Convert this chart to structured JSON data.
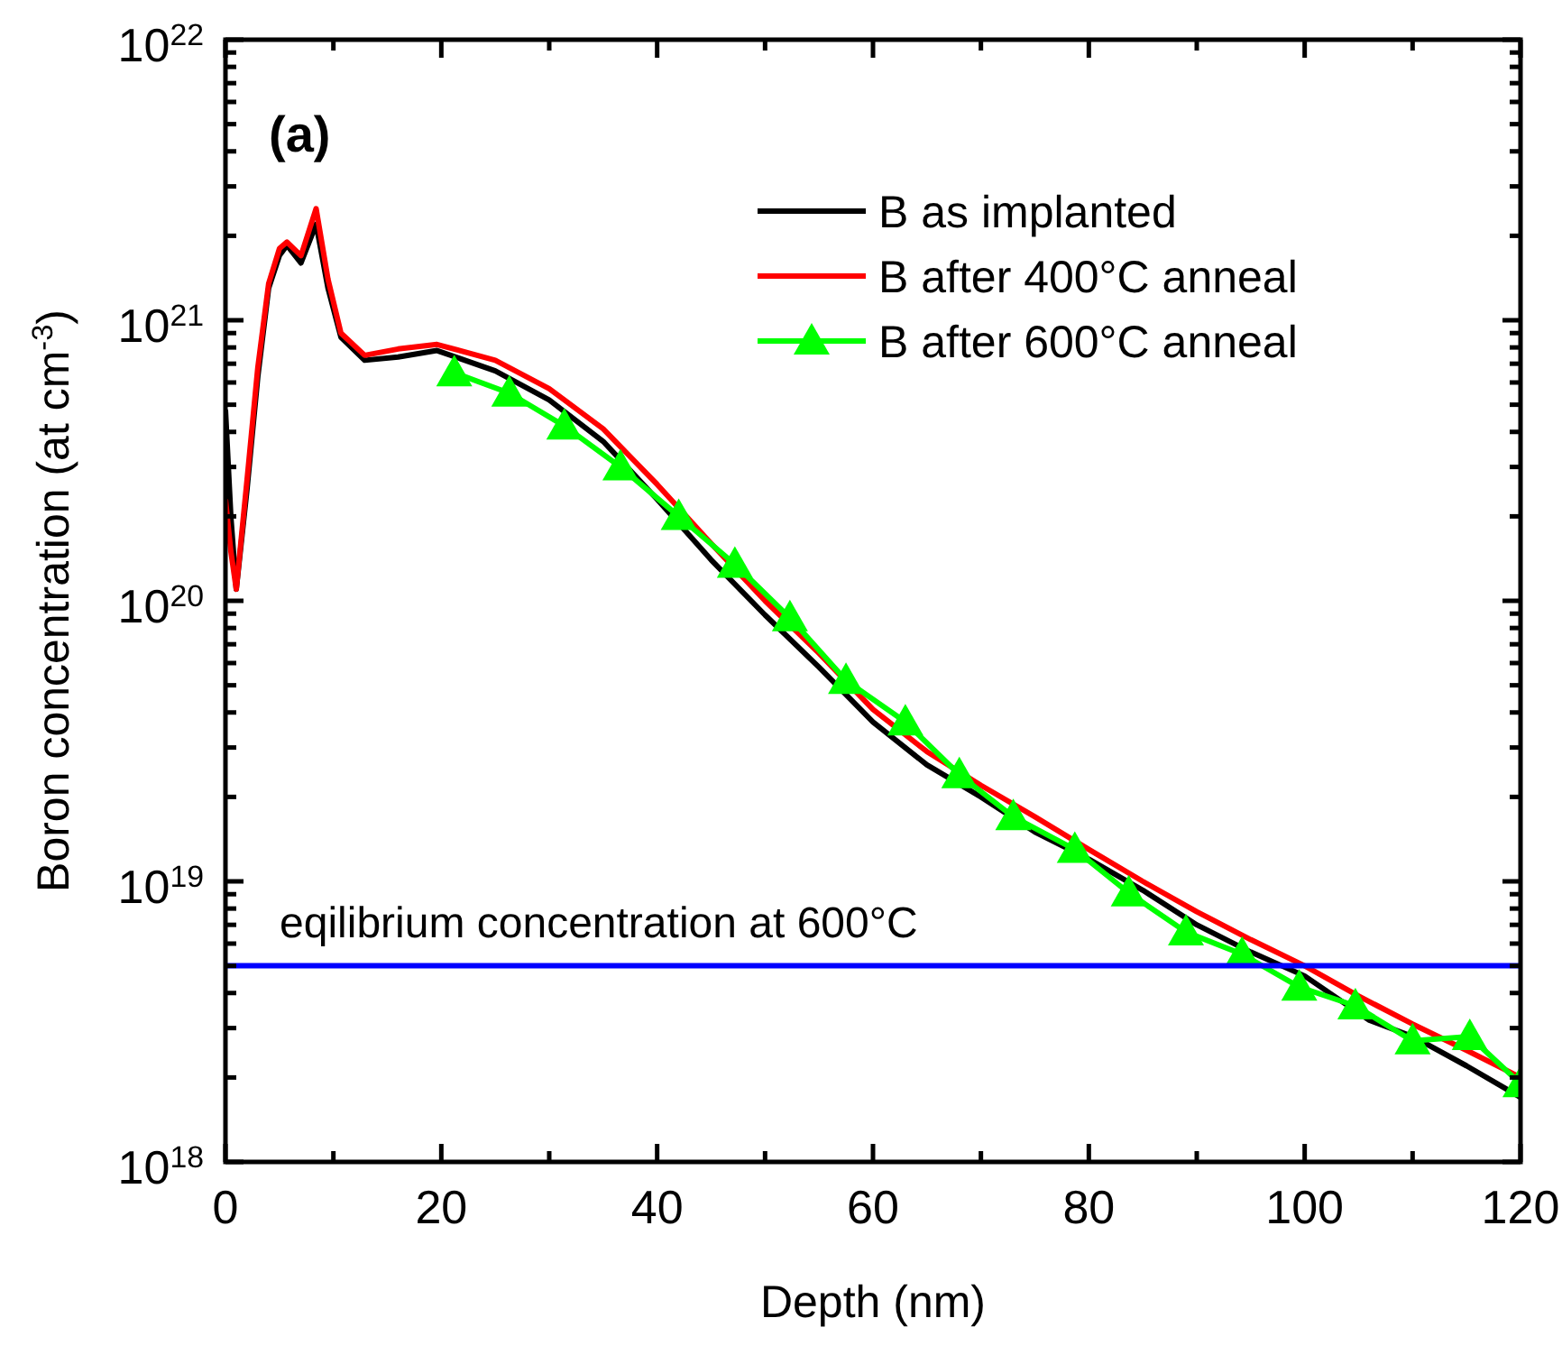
{
  "chart_data": {
    "type": "line",
    "xlabel": "Depth (nm)",
    "ylabel": "Boron concentration (at cm$^{-3}$)",
    "log": "y",
    "xlim": [
      0,
      120
    ],
    "ylim": [
      1e+18,
      1e+22
    ],
    "xticks": [
      0,
      {
        "value": 10,
        "label": null
      },
      20,
      {
        "value": 30,
        "label": null
      },
      40,
      {
        "value": 50,
        "label": null
      },
      60,
      {
        "value": 70,
        "label": null
      },
      80,
      {
        "value": 90,
        "label": null
      },
      100,
      {
        "value": 110,
        "label": null
      },
      120
    ],
    "yticks": [
      {
        "value": 1e+18,
        "label": "10$^{18}$"
      },
      {
        "value": 2e+18,
        "label": null
      },
      {
        "value": 3e+18,
        "label": null
      },
      {
        "value": 4e+18,
        "label": null
      },
      {
        "value": 5e+18,
        "label": null
      },
      {
        "value": 6e+18,
        "label": null
      },
      {
        "value": 7e+18,
        "label": null
      },
      {
        "value": 8e+18,
        "label": null
      },
      {
        "value": 9e+18,
        "label": null
      },
      {
        "value": 1e+19,
        "label": "10$^{19}$"
      },
      {
        "value": 2e+19,
        "label": null
      },
      {
        "value": 3e+19,
        "label": null
      },
      {
        "value": 4e+19,
        "label": null
      },
      {
        "value": 5e+19,
        "label": null
      },
      {
        "value": 6e+19,
        "label": null
      },
      {
        "value": 7e+19,
        "label": null
      },
      {
        "value": 8e+19,
        "label": null
      },
      {
        "value": 9e+19,
        "label": null
      },
      {
        "value": 1e+20,
        "label": "10$^{20}$"
      },
      {
        "value": 2e+20,
        "label": null
      },
      {
        "value": 3e+20,
        "label": null
      },
      {
        "value": 4e+20,
        "label": null
      },
      {
        "value": 5e+20,
        "label": null
      },
      {
        "value": 6e+20,
        "label": null
      },
      {
        "value": 7e+20,
        "label": null
      },
      {
        "value": 8e+20,
        "label": null
      },
      {
        "value": 9e+20,
        "label": null
      },
      {
        "value": 1e+21,
        "label": "10$^{21}$"
      },
      {
        "value": 2e+21,
        "label": null
      },
      {
        "value": 3e+21,
        "label": null
      },
      {
        "value": 4e+21,
        "label": null
      },
      {
        "value": 5e+21,
        "label": null
      },
      {
        "value": 6e+21,
        "label": null
      },
      {
        "value": 7e+21,
        "label": null
      },
      {
        "value": 8e+21,
        "label": null
      },
      {
        "value": 9e+21,
        "label": null
      },
      {
        "value": 1e+22,
        "label": "10$^{22}$"
      }
    ],
    "grid": false,
    "legend": "top right",
    "line_style": "solid",
    "series": [
      {
        "name": "B as implanted",
        "color": "#000000",
        "marker": "none",
        "x": [
          0,
          0.5,
          1,
          2,
          3,
          4,
          5,
          5.7,
          7,
          8.4,
          9.5,
          10.7,
          12.9,
          16,
          19.6,
          25,
          30,
          35,
          40,
          45,
          50,
          55,
          60,
          65,
          70,
          75,
          80,
          85,
          90,
          95,
          100,
          106,
          110,
          115,
          120
        ],
        "values": [
          4.8e+20,
          2e+20,
          1.1e+20,
          2.5e+20,
          6.3e+20,
          1.3e+21,
          1.7e+21,
          1.85e+21,
          1.6e+21,
          2.2e+21,
          1.3e+21,
          8.7e+20,
          7.2e+20,
          7.4e+20,
          7.8e+20,
          6.6e+20,
          5.2e+20,
          3.7e+20,
          2.3e+20,
          1.4e+20,
          8.9e+19,
          5.8e+19,
          3.7e+19,
          2.6e+19,
          2e+19,
          1.5e+19,
          1.2e+19,
          9.3e+18,
          7e+18,
          5.6e+18,
          4.6e+18,
          3.2e+18,
          2.8e+18,
          2.2e+18,
          1.7e+18
        ]
      },
      {
        "name": "B after 400°C anneal",
        "color": "#ff0000",
        "marker": "none",
        "x": [
          0,
          0.5,
          1,
          2,
          3,
          4,
          5,
          5.7,
          7,
          8.4,
          9.5,
          10.7,
          12.9,
          16,
          19.6,
          25,
          30,
          35,
          40,
          45,
          50,
          55,
          60,
          65,
          70,
          75,
          80,
          85,
          90,
          95,
          100,
          105,
          110,
          115,
          120
        ],
        "values": [
          2.3e+20,
          1.5e+20,
          1.1e+20,
          2.7e+20,
          6.8e+20,
          1.35e+21,
          1.8e+21,
          1.9e+21,
          1.7e+21,
          2.5e+21,
          1.4e+21,
          9e+20,
          7.5e+20,
          7.9e+20,
          8.2e+20,
          7.2e+20,
          5.7e+20,
          4.1e+20,
          2.6e+20,
          1.6e+20,
          1e+20,
          6.5e+19,
          4.1e+19,
          2.9e+19,
          2.2e+19,
          1.7e+19,
          1.3e+19,
          1e+19,
          7.8e+18,
          6.2e+18,
          5e+18,
          3.9e+18,
          3.1e+18,
          2.5e+18,
          2e+18
        ]
      },
      {
        "name": "B after 600°C anneal",
        "color": "#00ff00",
        "marker": "triangle",
        "x": [
          21.2,
          26.3,
          31.4,
          36.6,
          42,
          47.2,
          52.3,
          57.5,
          63,
          68,
          73,
          78.7,
          83.7,
          89,
          94.2,
          99.5,
          104.7,
          110,
          115.3,
          120
        ],
        "values": [
          6.5e+20,
          5.5e+20,
          4.2e+20,
          3e+20,
          2e+20,
          1.35e+20,
          8.7e+19,
          5.2e+19,
          3.7e+19,
          2.4e+19,
          1.7e+19,
          1.3e+19,
          9.1e+18,
          6.6e+18,
          5.5e+18,
          4.2e+18,
          3.6e+18,
          2.7e+18,
          2.8e+18,
          1.9e+18
        ]
      }
    ],
    "ref_lines": [
      {
        "axis": "y",
        "value": 5e+18,
        "label": "eqilibrium concentration at 600°C",
        "color": "#0000ff"
      }
    ],
    "annotations": [
      "(a)"
    ]
  }
}
